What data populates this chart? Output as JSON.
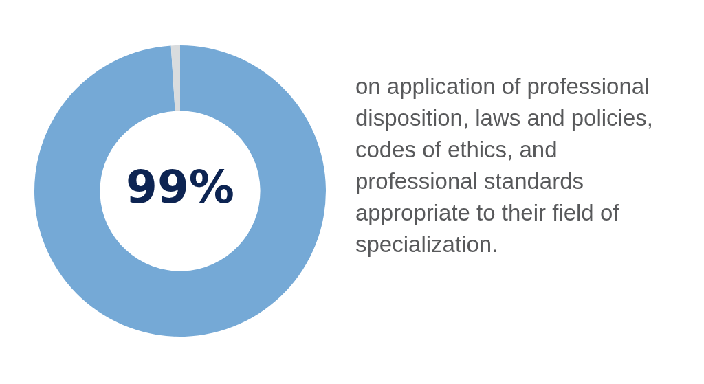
{
  "chart_data": {
    "type": "donut",
    "categories": [
      null,
      null
    ],
    "values": [
      99,
      1
    ],
    "colors": [
      "#75a9d6",
      "#d9dcde"
    ],
    "value_labels": [
      "99%",
      null
    ],
    "annotations": [
      "on application of professional disposition, laws and policies, codes of ethics, and professional standards appropriate to their field of specialization."
    ],
    "legend": false
  }
}
